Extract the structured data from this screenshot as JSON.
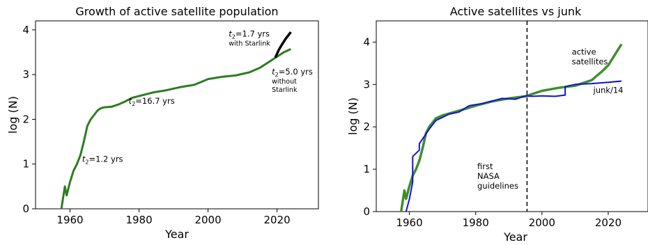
{
  "chart_data": [
    {
      "type": "line",
      "title": "Growth of active satellite population",
      "xlabel": "Year",
      "ylabel": "log (N)",
      "xlim": [
        1950,
        2032
      ],
      "ylim": [
        0,
        4.2
      ],
      "xticks": [
        "1960",
        "1980",
        "2000",
        "2020"
      ],
      "yticks": [
        "0",
        "1",
        "2",
        "3",
        "4"
      ],
      "grid": false,
      "colors": {
        "active": "#2e7d1f",
        "starlink": "#000000"
      },
      "series": [
        {
          "x": [
            1957.5,
            1958.5,
            1959,
            1960,
            1961,
            1962,
            1963,
            1964,
            1965,
            1966,
            1967,
            1968,
            1969,
            1970,
            1972,
            1974,
            1976,
            1978,
            1980,
            1984,
            1988,
            1992,
            1996,
            2000,
            2004,
            2008,
            2012,
            2015,
            2018,
            2020,
            2022,
            2024
          ],
          "y": [
            0,
            0.5,
            0.3,
            0.6,
            0.85,
            1.0,
            1.2,
            1.5,
            1.85,
            2.0,
            2.1,
            2.2,
            2.25,
            2.27,
            2.28,
            2.33,
            2.4,
            2.48,
            2.52,
            2.6,
            2.65,
            2.72,
            2.77,
            2.9,
            2.95,
            2.98,
            3.05,
            3.15,
            3.3,
            3.4,
            3.5,
            3.57
          ]
        },
        {
          "x": [
            2019.5,
            2020.5,
            2021.5,
            2022.5,
            2023.5,
            2024
          ],
          "y": [
            3.38,
            3.55,
            3.68,
            3.8,
            3.9,
            3.95
          ]
        }
      ],
      "annotations": [
        {
          "x": 1963.5,
          "y": 1.05,
          "sub": "2",
          "text": "=1.2 yrs"
        },
        {
          "x": 1977,
          "y": 2.35,
          "sub": "2",
          "text": "=16.7 yrs"
        },
        {
          "x": 2006,
          "y": 3.85,
          "sub": "2",
          "text": "=1.7 yrs",
          "note": [
            "with Starlink"
          ]
        },
        {
          "x": 2018.5,
          "y": 3.0,
          "sub": "2",
          "text": "=5.0 yrs",
          "note": [
            "without",
            "Starlink"
          ]
        }
      ]
    },
    {
      "type": "line",
      "title": "Active satellites vs junk",
      "xlabel": "Year",
      "ylabel": "log (N)",
      "xlim": [
        1950,
        2032
      ],
      "ylim": [
        0,
        4.5
      ],
      "xticks": [
        "1960",
        "1980",
        "2000",
        "2020"
      ],
      "yticks": [
        "0",
        "1",
        "2",
        "3",
        "4"
      ],
      "grid": false,
      "colors": {
        "active": "#3f8e2c",
        "junk": "#1010dd"
      },
      "vline": {
        "x": 1995.5,
        "style": "dashed"
      },
      "series": [
        {
          "x": [
            1957.5,
            1958.5,
            1959,
            1960,
            1961,
            1962,
            1963,
            1964,
            1965,
            1966,
            1967,
            1968,
            1970,
            1975,
            1980,
            1985,
            1990,
            1995,
            2000,
            2005,
            2010,
            2015,
            2018,
            2020,
            2022,
            2024
          ],
          "y": [
            0,
            0.5,
            0.3,
            0.6,
            0.85,
            1.0,
            1.2,
            1.5,
            1.85,
            2.0,
            2.1,
            2.2,
            2.27,
            2.38,
            2.5,
            2.6,
            2.67,
            2.72,
            2.85,
            2.92,
            2.97,
            3.1,
            3.3,
            3.45,
            3.7,
            3.95
          ]
        },
        {
          "x": [
            1959,
            1960,
            1961,
            1961,
            1963,
            1963,
            1966,
            1968,
            1972,
            1975,
            1978,
            1982,
            1986,
            1988,
            1992,
            1995,
            1997,
            2000,
            2004,
            2007,
            2007,
            2010,
            2015,
            2020,
            2024
          ],
          "y": [
            0,
            0.3,
            0.7,
            1.3,
            1.45,
            1.6,
            1.95,
            2.15,
            2.3,
            2.35,
            2.5,
            2.55,
            2.63,
            2.67,
            2.65,
            2.73,
            2.72,
            2.73,
            2.72,
            2.75,
            2.95,
            3.0,
            3.02,
            3.05,
            3.08
          ]
        }
      ],
      "annotations": [
        {
          "x": 1980.5,
          "y": 1.0,
          "lines": [
            "first",
            "NASA",
            "guidelines"
          ]
        },
        {
          "x": 2009,
          "y": 3.7,
          "lines": [
            "active",
            "satellites"
          ]
        },
        {
          "x": 2015.5,
          "y": 2.8,
          "lines": [
            "junk/14"
          ]
        }
      ]
    }
  ]
}
